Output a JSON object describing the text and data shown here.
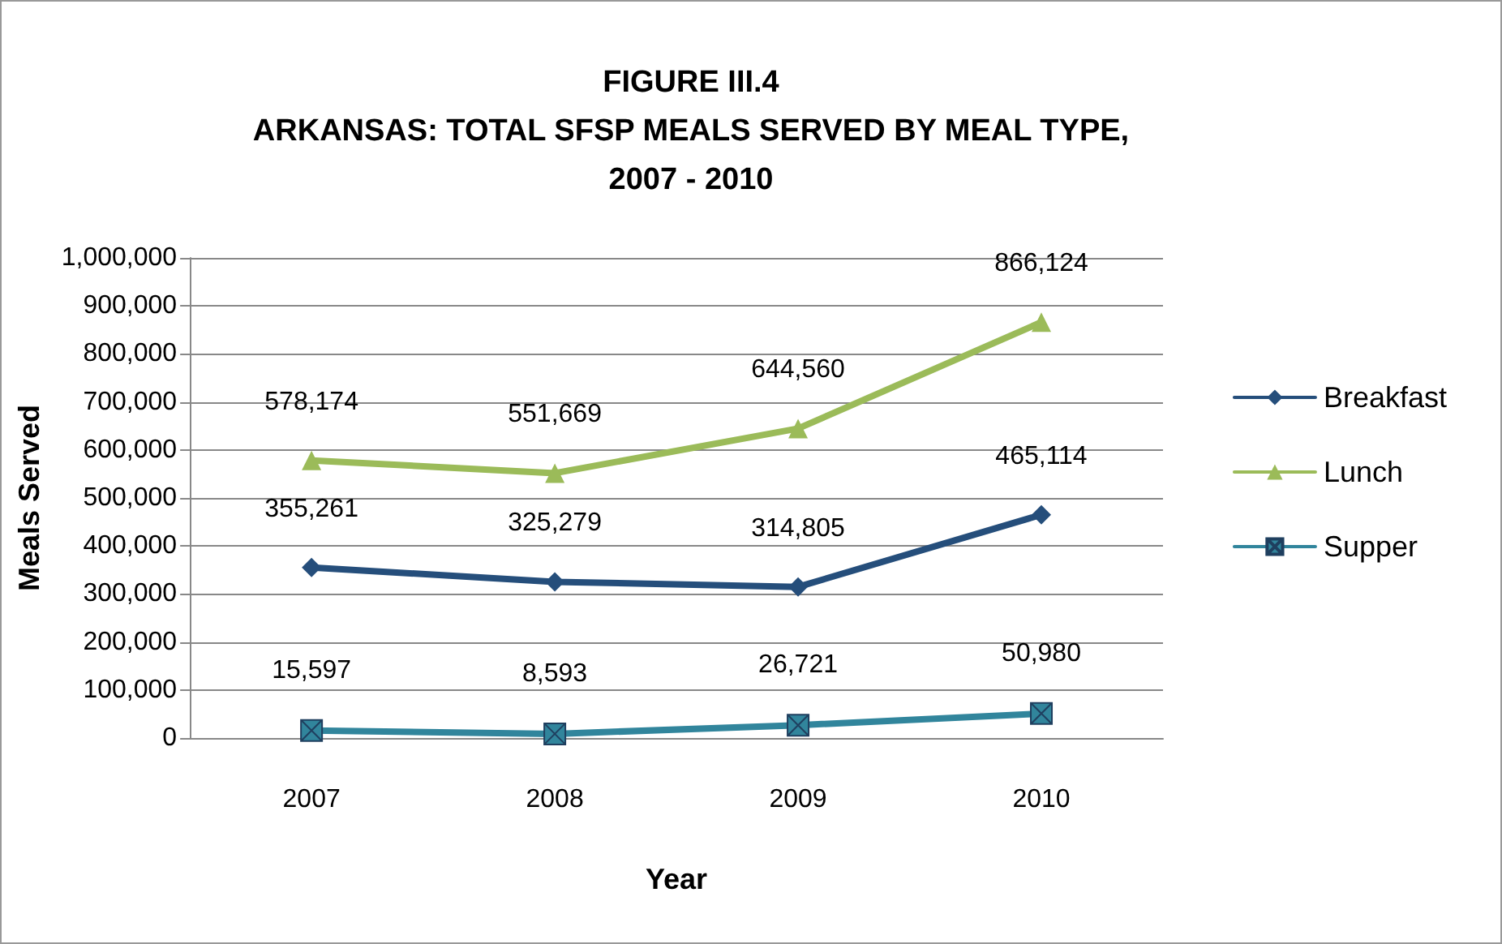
{
  "chart_data": {
    "type": "line",
    "title": "FIGURE III.4\nARKANSAS: TOTAL SFSP MEALS SERVED BY MEAL TYPE,\n2007 - 2010",
    "xlabel": "Year",
    "ylabel": "Meals Served",
    "categories": [
      "2007",
      "2008",
      "2009",
      "2010"
    ],
    "series": [
      {
        "name": "Breakfast",
        "color": "#254e7b",
        "marker": "diamond",
        "values": [
          355261,
          325279,
          314805,
          465114
        ],
        "value_labels": [
          "355,261",
          "325,279",
          "314,805",
          "465,114"
        ]
      },
      {
        "name": "Lunch",
        "color": "#9bbb59",
        "marker": "triangle",
        "values": [
          578174,
          551669,
          644560,
          866124
        ],
        "value_labels": [
          "578,174",
          "551,669",
          "644,560",
          "866,124"
        ]
      },
      {
        "name": "Supper",
        "color": "#31859c",
        "marker": "cross",
        "values": [
          15597,
          8593,
          26721,
          50980
        ],
        "value_labels": [
          "15,597",
          "8,593",
          "26,721",
          "50,980"
        ]
      }
    ],
    "ylim": [
      0,
      1000000
    ],
    "yticks": [
      0,
      {
        "value": 100000,
        "label": "100,000"
      },
      {
        "value": 200000,
        "label": "200,000"
      },
      {
        "value": 300000,
        "label": "300,000"
      },
      {
        "value": 400000,
        "label": "400,000"
      },
      {
        "value": 500000,
        "label": "500,000"
      },
      {
        "value": 600000,
        "label": "600,000"
      },
      {
        "value": 700000,
        "label": "700,000"
      },
      {
        "value": 800000,
        "label": "800,000"
      },
      {
        "value": 900000,
        "label": "900,000"
      },
      {
        "value": 1000000,
        "label": "1,000,000"
      }
    ],
    "grid": "y",
    "legend": "right",
    "line_style": "solid"
  }
}
